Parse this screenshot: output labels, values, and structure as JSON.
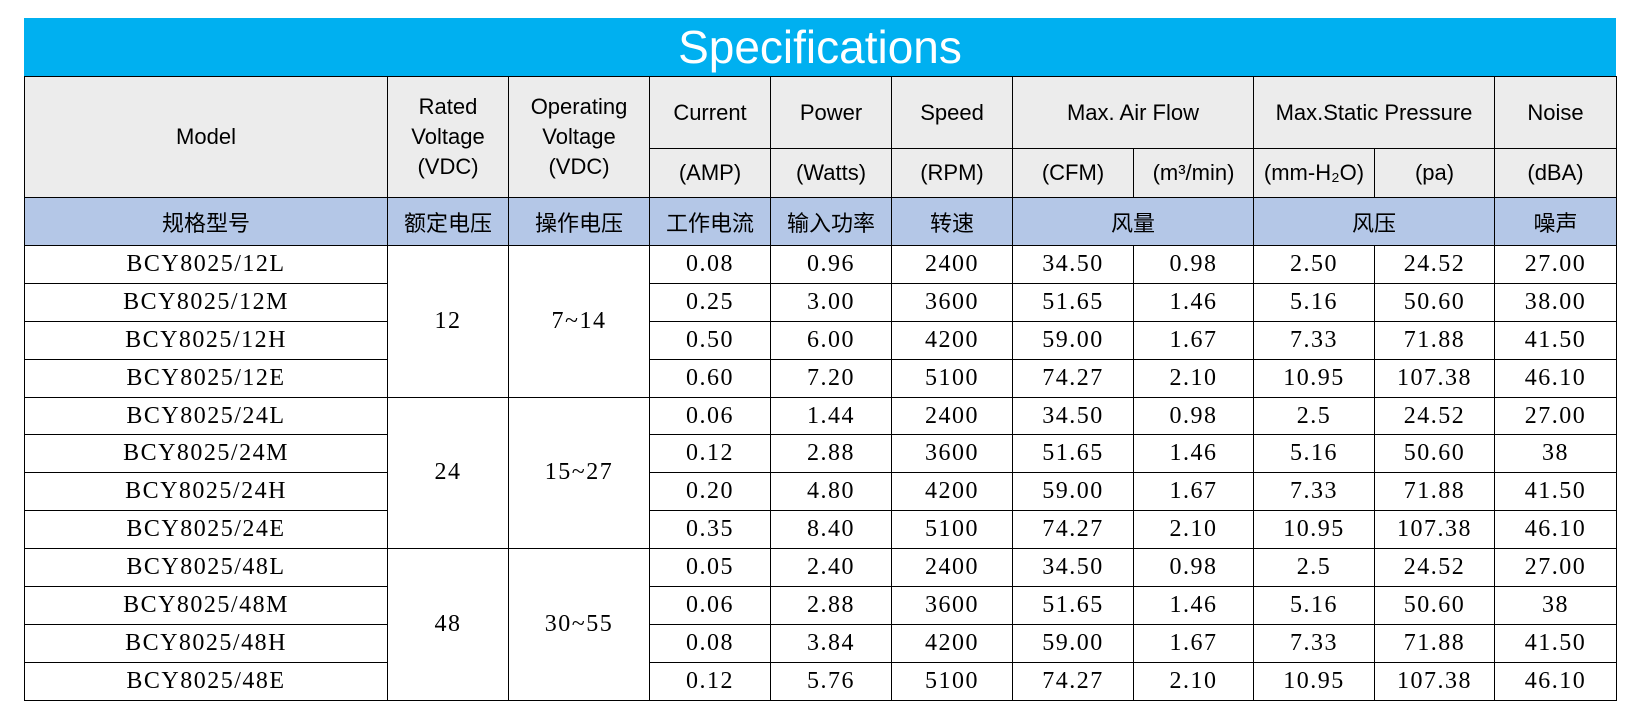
{
  "title": "Specifications",
  "header": {
    "row1": [
      "Model",
      "Rated Voltage (VDC)",
      "Operating Voltage (VDC)",
      "Current",
      "Power",
      "Speed",
      "Max. Air Flow",
      "Max.Static Pressure",
      "Noise"
    ],
    "units": [
      "(AMP)",
      "(Watts)",
      "(RPM)",
      "(CFM)",
      "(m³/min)",
      "(mm-H₂O)",
      "(pa)",
      "(dBA)"
    ]
  },
  "chinese": [
    "规格型号",
    "额定电压",
    "操作电压",
    "工作电流",
    "输入功率",
    "转速",
    "风量",
    "风压",
    "噪声"
  ],
  "groups": [
    {
      "rated": "12",
      "operating": "7~14",
      "rows": [
        [
          "BCY8025/12L",
          "0.08",
          "0.96",
          "2400",
          "34.50",
          "0.98",
          "2.50",
          "24.52",
          "27.00"
        ],
        [
          "BCY8025/12M",
          "0.25",
          "3.00",
          "3600",
          "51.65",
          "1.46",
          "5.16",
          "50.60",
          "38.00"
        ],
        [
          "BCY8025/12H",
          "0.50",
          "6.00",
          "4200",
          "59.00",
          "1.67",
          "7.33",
          "71.88",
          "41.50"
        ],
        [
          "BCY8025/12E",
          "0.60",
          "7.20",
          "5100",
          "74.27",
          "2.10",
          "10.95",
          "107.38",
          "46.10"
        ]
      ]
    },
    {
      "rated": "24",
      "operating": "15~27",
      "rows": [
        [
          "BCY8025/24L",
          "0.06",
          "1.44",
          "2400",
          "34.50",
          "0.98",
          "2.5",
          "24.52",
          "27.00"
        ],
        [
          "BCY8025/24M",
          "0.12",
          "2.88",
          "3600",
          "51.65",
          "1.46",
          "5.16",
          "50.60",
          "38"
        ],
        [
          "BCY8025/24H",
          "0.20",
          "4.80",
          "4200",
          "59.00",
          "1.67",
          "7.33",
          "71.88",
          "41.50"
        ],
        [
          "BCY8025/24E",
          "0.35",
          "8.40",
          "5100",
          "74.27",
          "2.10",
          "10.95",
          "107.38",
          "46.10"
        ]
      ]
    },
    {
      "rated": "48",
      "operating": "30~55",
      "rows": [
        [
          "BCY8025/48L",
          "0.05",
          "2.40",
          "2400",
          "34.50",
          "0.98",
          "2.5",
          "24.52",
          "27.00"
        ],
        [
          "BCY8025/48M",
          "0.06",
          "2.88",
          "3600",
          "51.65",
          "1.46",
          "5.16",
          "50.60",
          "38"
        ],
        [
          "BCY8025/48H",
          "0.08",
          "3.84",
          "4200",
          "59.00",
          "1.67",
          "7.33",
          "71.88",
          "41.50"
        ],
        [
          "BCY8025/48E",
          "0.12",
          "5.76",
          "5100",
          "74.27",
          "2.10",
          "10.95",
          "107.38",
          "46.10"
        ]
      ]
    }
  ]
}
